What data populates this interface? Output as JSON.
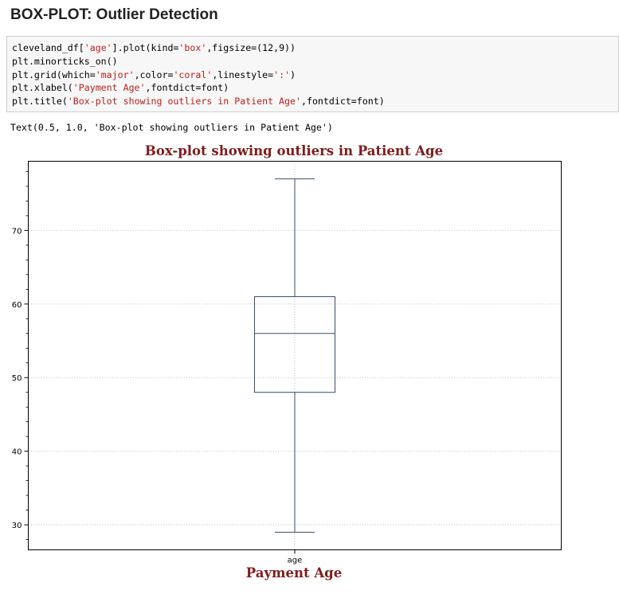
{
  "heading": "BOX-PLOT: Outlier Detection",
  "code_cell": {
    "lines": [
      [
        {
          "t": "cleveland_df["
        },
        {
          "t": "'age'",
          "s": 1
        },
        {
          "t": "].plot(kind="
        },
        {
          "t": "'box'",
          "s": 1
        },
        {
          "t": ",figsize=(12,9))"
        }
      ],
      [
        {
          "t": "plt.minorticks_on()"
        }
      ],
      [
        {
          "t": "plt.grid(which="
        },
        {
          "t": "'major'",
          "s": 1
        },
        {
          "t": ",color="
        },
        {
          "t": "'coral'",
          "s": 1
        },
        {
          "t": ",linestyle="
        },
        {
          "t": "':'",
          "s": 1
        },
        {
          "t": ")"
        }
      ],
      [
        {
          "t": "plt.xlabel("
        },
        {
          "t": "'Payment Age'",
          "s": 1
        },
        {
          "t": ",fontdict=font)"
        }
      ],
      [
        {
          "t": "plt.title("
        },
        {
          "t": "'Box-plot showing outliers in Patient Age'",
          "s": 1
        },
        {
          "t": ",fontdict=font)"
        }
      ]
    ]
  },
  "output_text": "Text(0.5, 1.0, 'Box-plot showing outliers in Patient Age')",
  "colors": {
    "title_text": "#7f1d1d",
    "box_line": "#3b4d6e",
    "grid": "#b7b7b7",
    "string_literal": "#ba2121"
  },
  "chart_data": {
    "type": "box",
    "title": "Box-plot showing outliers in Patient Age",
    "xlabel": "Payment Age",
    "ylabel": "",
    "categories": [
      "age"
    ],
    "series": [
      {
        "whisker_low": 29,
        "q1": 48,
        "median": 56,
        "q3": 61,
        "whisker_high": 77
      }
    ],
    "ylim": [
      26.6,
      79.4
    ],
    "yticks": [
      30,
      40,
      50,
      60,
      70
    ],
    "minor_ticks": true,
    "grid": true,
    "grid_which": "major",
    "grid_linestyle": "dotted",
    "outliers": []
  }
}
